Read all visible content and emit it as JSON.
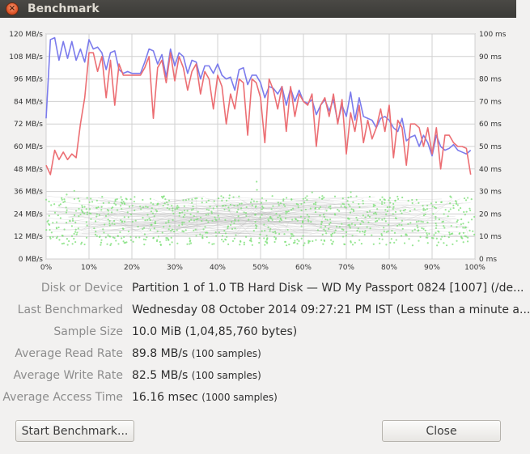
{
  "window": {
    "title": "Benchmark",
    "close_icon": "close-icon",
    "close_glyph": "×"
  },
  "chart_data": {
    "type": "line",
    "x_axis": {
      "range": [
        0,
        100
      ],
      "ticks": [
        "0%",
        "10%",
        "20%",
        "30%",
        "40%",
        "50%",
        "60%",
        "70%",
        "80%",
        "90%",
        "100%"
      ]
    },
    "y_left": {
      "range": [
        0,
        120
      ],
      "unit": "MB/s",
      "ticks": [
        "0 MB/s",
        "12 MB/s",
        "24 MB/s",
        "36 MB/s",
        "48 MB/s",
        "60 MB/s",
        "72 MB/s",
        "84 MB/s",
        "96 MB/s",
        "108 MB/s",
        "120 MB/s"
      ]
    },
    "y_right": {
      "range": [
        0,
        100
      ],
      "unit": "ms",
      "ticks": [
        "0 ms",
        "10 ms",
        "20 ms",
        "30 ms",
        "40 ms",
        "50 ms",
        "60 ms",
        "70 ms",
        "80 ms",
        "90 ms",
        "100 ms"
      ]
    },
    "grid": true,
    "series": [
      {
        "color": "#7b7bec",
        "x": [
          0,
          1,
          2,
          3,
          4,
          5,
          6,
          7,
          8,
          9,
          10,
          11,
          12,
          13,
          14,
          15,
          16,
          17,
          18,
          19,
          20,
          21,
          22,
          23,
          24,
          25,
          26,
          27,
          28,
          29,
          30,
          31,
          32,
          33,
          34,
          35,
          36,
          37,
          38,
          39,
          40,
          41,
          42,
          43,
          44,
          45,
          46,
          47,
          48,
          49,
          50,
          51,
          52,
          53,
          54,
          55,
          56,
          57,
          58,
          59,
          60,
          61,
          62,
          63,
          64,
          65,
          66,
          67,
          68,
          69,
          70,
          71,
          72,
          73,
          74,
          75,
          76,
          77,
          78,
          79,
          80,
          81,
          82,
          83,
          84,
          85,
          86,
          87,
          88,
          89,
          90,
          91,
          92,
          93,
          94,
          95,
          96,
          97,
          98,
          99
        ],
        "y": [
          75,
          117,
          118,
          106,
          116,
          107,
          116,
          106,
          112,
          105,
          117,
          112,
          113,
          110,
          101,
          110,
          111,
          101,
          99,
          100,
          99,
          99,
          99,
          105,
          112,
          111,
          104,
          109,
          97,
          112,
          103,
          110,
          108,
          99,
          106,
          105,
          96,
          103,
          103,
          99,
          104,
          98,
          96,
          97,
          90,
          101,
          102,
          93,
          98,
          98,
          94,
          86,
          92,
          91,
          88,
          92,
          82,
          91,
          84,
          90,
          84,
          83,
          85,
          77,
          82,
          85,
          79,
          85,
          73,
          82,
          76,
          89,
          74,
          86,
          76,
          75,
          74,
          70,
          75,
          76,
          74,
          70,
          68,
          75,
          63,
          65,
          66,
          60,
          66,
          62,
          55,
          66,
          60,
          58,
          59,
          61,
          58,
          57,
          56,
          58
        ]
      },
      {
        "color": "#ec6e73",
        "x": [
          0,
          1,
          2,
          3,
          4,
          5,
          6,
          7,
          8,
          9,
          10,
          11,
          12,
          13,
          14,
          15,
          16,
          17,
          18,
          19,
          20,
          21,
          22,
          23,
          24,
          25,
          26,
          27,
          28,
          29,
          30,
          31,
          32,
          33,
          34,
          35,
          36,
          37,
          38,
          39,
          40,
          41,
          42,
          43,
          44,
          45,
          46,
          47,
          48,
          49,
          50,
          51,
          52,
          53,
          54,
          55,
          56,
          57,
          58,
          59,
          60,
          61,
          62,
          63,
          64,
          65,
          66,
          67,
          68,
          69,
          70,
          71,
          72,
          73,
          74,
          75,
          76,
          77,
          78,
          79,
          80,
          81,
          82,
          83,
          84,
          85,
          86,
          87,
          88,
          89,
          90,
          91,
          92,
          93,
          94,
          95,
          96,
          97,
          98,
          99
        ],
        "y": [
          50,
          45,
          58,
          53,
          57,
          53,
          56,
          54,
          72,
          86,
          110,
          110,
          100,
          108,
          86,
          106,
          82,
          104,
          98,
          98,
          98,
          98,
          98,
          102,
          108,
          75,
          102,
          106,
          94,
          110,
          95,
          108,
          102,
          90,
          100,
          104,
          88,
          100,
          96,
          80,
          98,
          92,
          72,
          88,
          80,
          96,
          94,
          66,
          96,
          94,
          86,
          62,
          96,
          90,
          80,
          92,
          68,
          92,
          76,
          88,
          84,
          82,
          88,
          60,
          82,
          86,
          76,
          88,
          72,
          85,
          56,
          78,
          68,
          82,
          62,
          74,
          64,
          70,
          80,
          68,
          82,
          54,
          74,
          70,
          50,
          72,
          72,
          70,
          60,
          70,
          56,
          70,
          48,
          66,
          66,
          62,
          60,
          60,
          59,
          45
        ]
      }
    ]
  },
  "details": {
    "device": {
      "label": "Disk or Device",
      "value": "Partition 1 of 1.0 TB Hard Disk — WD My Passport 0824 [1007] (/de..."
    },
    "last": {
      "label": "Last Benchmarked",
      "value": "Wednesday 08 October 2014 09:27:21 PM IST (Less than a minute a..."
    },
    "size": {
      "label": "Sample Size",
      "value": "10.0 MiB (1,04,85,760 bytes)"
    },
    "read": {
      "label": "Average Read Rate",
      "value": "89.8 MB/s",
      "note": "(100 samples)"
    },
    "write": {
      "label": "Average Write Rate",
      "value": "82.5 MB/s",
      "note": "(100 samples)"
    },
    "access": {
      "label": "Average Access Time",
      "value": "16.16 msec",
      "note": "(1000 samples)"
    }
  },
  "buttons": {
    "start": "Start Benchmark...",
    "close": "Close"
  }
}
